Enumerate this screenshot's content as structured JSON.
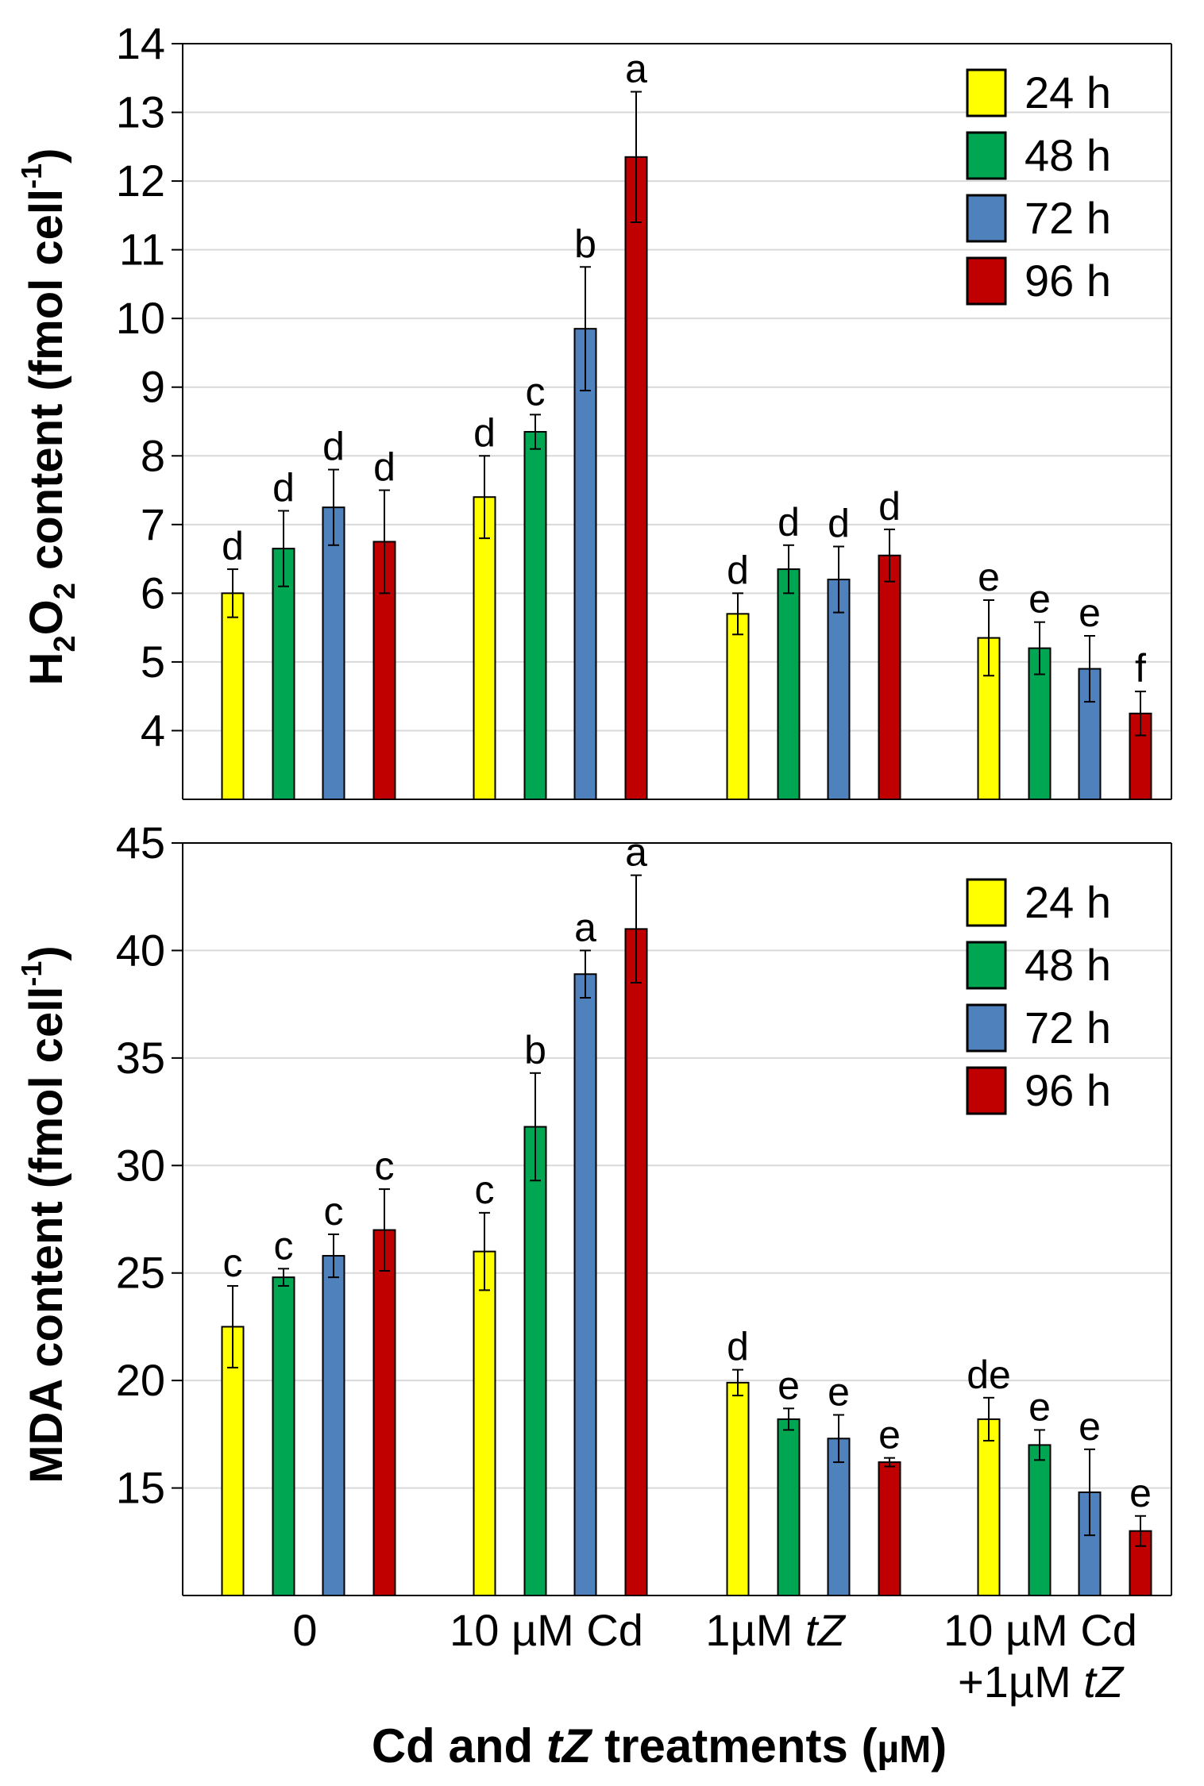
{
  "colors": {
    "24 h": "#ffff00",
    "48 h": "#00a651",
    "72 h": "#4f81bd",
    "96 h": "#c00000"
  },
  "chart_data": [
    {
      "type": "bar",
      "ylabel": "H2O2 content (fmol cell-1)",
      "ylabel_parts": {
        "a": "H",
        "b": "2",
        "c": "O",
        "d": "2",
        "e": " content (fmol cell",
        "f": "-1",
        "g": ")"
      },
      "ylim": [
        3,
        14
      ],
      "yticks": [
        4,
        5,
        6,
        7,
        8,
        9,
        10,
        11,
        12,
        13,
        14
      ],
      "grid": true,
      "legend": "top-right",
      "categories": [
        "0",
        "10 µM Cd",
        "1µM tZ",
        "10 µM Cd +1µM tZ"
      ],
      "series": [
        {
          "name": "24 h",
          "values": [
            6.0,
            7.4,
            5.7,
            5.35
          ],
          "errors": [
            0.35,
            0.6,
            0.3,
            0.55
          ],
          "labels": [
            "d",
            "d",
            "d",
            "e"
          ]
        },
        {
          "name": "48 h",
          "values": [
            6.65,
            8.35,
            6.35,
            5.2
          ],
          "errors": [
            0.55,
            0.25,
            0.35,
            0.38
          ],
          "labels": [
            "d",
            "c",
            "d",
            "e"
          ]
        },
        {
          "name": "72 h",
          "values": [
            7.25,
            9.85,
            6.2,
            4.9
          ],
          "errors": [
            0.55,
            0.9,
            0.48,
            0.48
          ],
          "labels": [
            "d",
            "b",
            "d",
            "e"
          ]
        },
        {
          "name": "96 h",
          "values": [
            6.75,
            12.35,
            6.55,
            4.25
          ],
          "errors": [
            0.75,
            0.95,
            0.38,
            0.32
          ],
          "labels": [
            "d",
            "a",
            "d",
            "f"
          ]
        }
      ]
    },
    {
      "type": "bar",
      "ylabel": "MDA content (fmol cell-1)",
      "ylabel_parts": {
        "a": "MDA content (fmol cell",
        "f": "-1",
        "g": ")"
      },
      "xlabel": "Cd and tZ treatments (µM)",
      "xlabel_parts": {
        "a": "Cd and ",
        "b": "tZ",
        "c": " treatments (",
        "d": "µM",
        "e": ")"
      },
      "ylim": [
        10,
        45
      ],
      "yticks": [
        15,
        20,
        25,
        30,
        35,
        40,
        45
      ],
      "grid": true,
      "legend": "top-right",
      "categories": [
        "0",
        "10 µM Cd",
        "1µM tZ",
        "10 µM Cd +1µM tZ"
      ],
      "category_parts": [
        {
          "a": "0"
        },
        {
          "a": "10 µM Cd"
        },
        {
          "a": "1µM ",
          "b": "tZ"
        },
        {
          "a": "10 µM Cd",
          "c": "+1µM ",
          "d": "tZ"
        }
      ],
      "series": [
        {
          "name": "24 h",
          "values": [
            22.5,
            26.0,
            19.9,
            18.2
          ],
          "errors": [
            1.9,
            1.8,
            0.6,
            1.0
          ],
          "labels": [
            "c",
            "c",
            "d",
            "de"
          ]
        },
        {
          "name": "48 h",
          "values": [
            24.8,
            31.8,
            18.2,
            17.0
          ],
          "errors": [
            0.4,
            2.5,
            0.5,
            0.7
          ],
          "labels": [
            "c",
            "b",
            "e",
            "e"
          ]
        },
        {
          "name": "72 h",
          "values": [
            25.8,
            38.9,
            17.3,
            14.8
          ],
          "errors": [
            1.0,
            1.1,
            1.1,
            2.0
          ],
          "labels": [
            "c",
            "a",
            "e",
            "e"
          ]
        },
        {
          "name": "96 h",
          "values": [
            27.0,
            41.0,
            16.2,
            13.0
          ],
          "errors": [
            1.9,
            2.5,
            0.2,
            0.7
          ],
          "labels": [
            "c",
            "a",
            "e",
            "e"
          ]
        }
      ]
    }
  ]
}
